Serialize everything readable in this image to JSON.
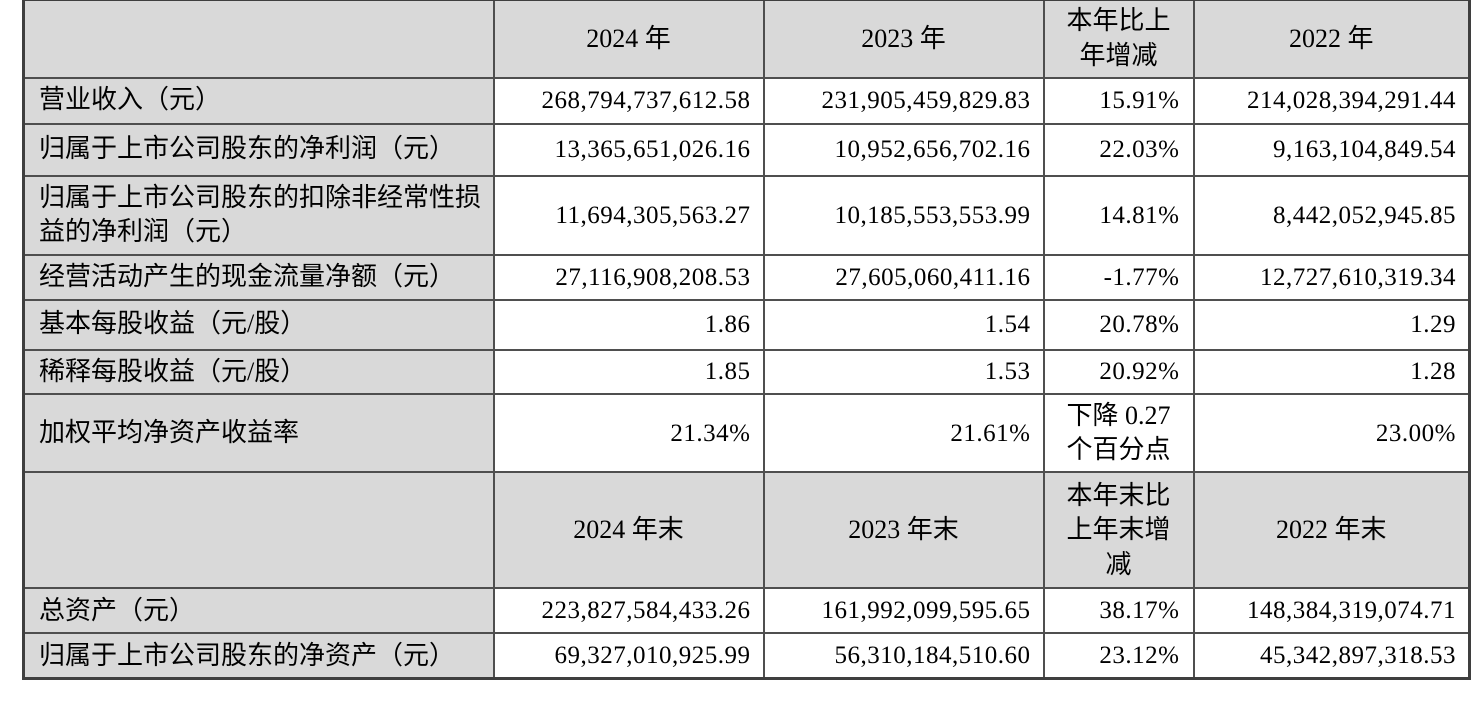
{
  "colors": {
    "header_label_bg": "#d9d9d9",
    "data_bg": "#ffffff",
    "grid_line": "#4f4f4f",
    "text": "#000000"
  },
  "table": {
    "section_income": {
      "headers": {
        "blank": "",
        "y2024": "2024 年",
        "y2023": "2023 年",
        "change": "本年比上\n年增减",
        "y2022": "2022 年"
      },
      "rows": [
        {
          "label": "营业收入（元）",
          "y2024": "268,794,737,612.58",
          "y2023": "231,905,459,829.83",
          "change": "15.91%",
          "y2022": "214,028,394,291.44"
        },
        {
          "label": "归属于上市公司股东的净利润（元）",
          "y2024": "13,365,651,026.16",
          "y2023": "10,952,656,702.16",
          "change": "22.03%",
          "y2022": "9,163,104,849.54"
        },
        {
          "label": "归属于上市公司股东的扣除非经常性损益的净利润（元）",
          "y2024": "11,694,305,563.27",
          "y2023": "10,185,553,553.99",
          "change": "14.81%",
          "y2022": "8,442,052,945.85"
        },
        {
          "label": "经营活动产生的现金流量净额（元）",
          "y2024": "27,116,908,208.53",
          "y2023": "27,605,060,411.16",
          "change": "-1.77%",
          "y2022": "12,727,610,319.34"
        },
        {
          "label": "基本每股收益（元/股）",
          "y2024": "1.86",
          "y2023": "1.54",
          "change": "20.78%",
          "y2022": "1.29"
        },
        {
          "label": "稀释每股收益（元/股）",
          "y2024": "1.85",
          "y2023": "1.53",
          "change": "20.92%",
          "y2022": "1.28"
        },
        {
          "label": "加权平均净资产收益率",
          "y2024": "21.34%",
          "y2023": "21.61%",
          "change": "下降 0.27\n个百分点",
          "y2022": "23.00%"
        }
      ]
    },
    "section_balance": {
      "headers": {
        "blank": "",
        "y2024": "2024 年末",
        "y2023": "2023 年末",
        "change": "本年末比\n上年末增\n减",
        "y2022": "2022 年末"
      },
      "rows": [
        {
          "label": "总资产（元）",
          "y2024": "223,827,584,433.26",
          "y2023": "161,992,099,595.65",
          "change": "38.17%",
          "y2022": "148,384,319,074.71"
        },
        {
          "label": "归属于上市公司股东的净资产（元）",
          "y2024": "69,327,010,925.99",
          "y2023": "56,310,184,510.60",
          "change": "23.12%",
          "y2022": "45,342,897,318.53"
        }
      ]
    }
  }
}
